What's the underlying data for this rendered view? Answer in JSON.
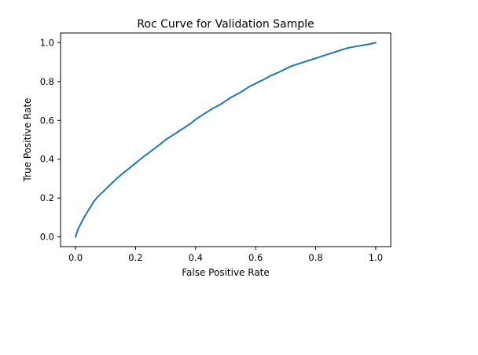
{
  "chart_data": {
    "type": "line",
    "title": "Roc Curve for Validation Sample",
    "xlabel": "False Positive Rate",
    "ylabel": "True Positive Rate",
    "xlim": [
      -0.05,
      1.05
    ],
    "ylim": [
      -0.05,
      1.05
    ],
    "xticks": [
      0.0,
      0.2,
      0.4,
      0.6,
      0.8,
      1.0
    ],
    "xtick_labels": [
      "0.0",
      "0.2",
      "0.4",
      "0.6",
      "0.8",
      "1.0"
    ],
    "yticks": [
      0.0,
      0.2,
      0.4,
      0.6,
      0.8,
      1.0
    ],
    "ytick_labels": [
      "0.0",
      "0.2",
      "0.4",
      "0.6",
      "0.8",
      "1.0"
    ],
    "grid": false,
    "legend": false,
    "colors": {
      "line": "#1f77b4"
    },
    "series": [
      {
        "x": [
          0.0,
          0.005,
          0.01,
          0.02,
          0.03,
          0.04,
          0.05,
          0.06,
          0.07,
          0.08,
          0.1,
          0.12,
          0.14,
          0.16,
          0.18,
          0.2,
          0.22,
          0.25,
          0.28,
          0.3,
          0.32,
          0.35,
          0.38,
          0.4,
          0.42,
          0.45,
          0.48,
          0.5,
          0.52,
          0.55,
          0.58,
          0.6,
          0.62,
          0.65,
          0.68,
          0.7,
          0.72,
          0.75,
          0.78,
          0.8,
          0.82,
          0.85,
          0.88,
          0.9,
          0.92,
          0.95,
          0.98,
          1.0
        ],
        "y": [
          0.0,
          0.025,
          0.045,
          0.075,
          0.105,
          0.13,
          0.155,
          0.18,
          0.2,
          0.215,
          0.245,
          0.275,
          0.305,
          0.33,
          0.355,
          0.38,
          0.405,
          0.44,
          0.475,
          0.5,
          0.52,
          0.55,
          0.58,
          0.605,
          0.625,
          0.655,
          0.68,
          0.7,
          0.72,
          0.745,
          0.775,
          0.79,
          0.805,
          0.83,
          0.85,
          0.865,
          0.88,
          0.895,
          0.91,
          0.92,
          0.93,
          0.945,
          0.96,
          0.97,
          0.977,
          0.985,
          0.993,
          1.0
        ]
      }
    ]
  }
}
